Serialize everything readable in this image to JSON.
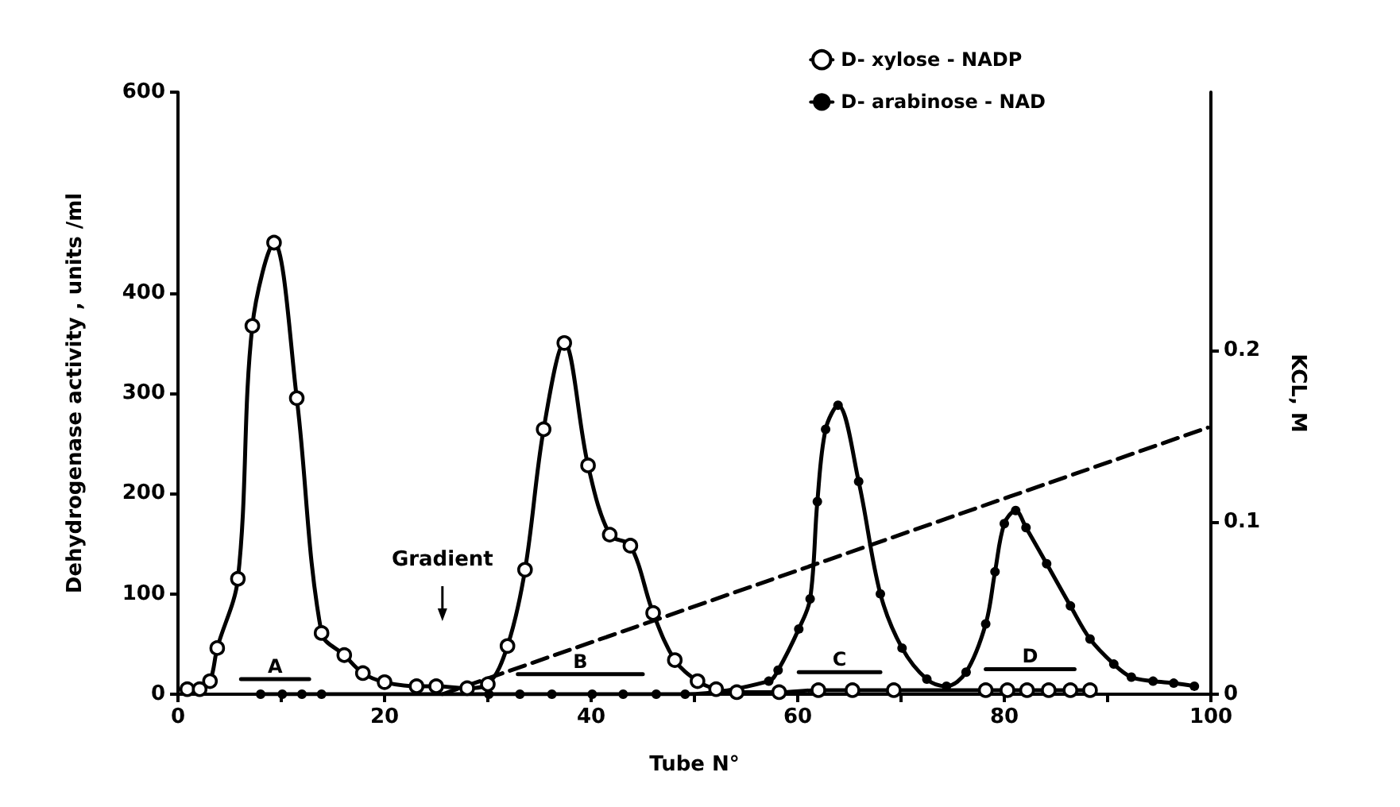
{
  "chart_data": {
    "type": "line",
    "xlabel": "Tube N°",
    "ylabel": "Dehydrogenase activity , units /ml",
    "y2label": "KCL, M",
    "xlim": [
      0,
      100
    ],
    "xticks": [
      0,
      {
        "value": 10,
        "label": null
      },
      20,
      {
        "value": 30,
        "label": null
      },
      40,
      {
        "value": 50,
        "label": null
      },
      60,
      {
        "value": 70,
        "label": null
      },
      80,
      {
        "value": 90,
        "label": null
      },
      100
    ],
    "ylim": [
      0,
      600
    ],
    "yticks": [
      0,
      100,
      200,
      300,
      400,
      600
    ],
    "y2lim": [
      0,
      0.35
    ],
    "y2ticks": [
      0,
      0.1,
      0.2
    ],
    "grid": false,
    "legend": "top right",
    "marker": "circle",
    "series": [
      {
        "name": "D- xylose - NADP",
        "color": "#000000",
        "marker": "circle",
        "x": [
          0.9,
          2.1,
          3.1,
          3.8,
          5.8,
          7.2,
          9.3,
          11.5,
          13.9,
          16.1,
          17.9,
          20,
          23.1,
          25,
          28,
          30,
          31.9,
          33.6,
          35.4,
          37.4,
          39.7,
          41.8,
          43.8,
          46,
          48.1,
          50.3,
          52.1,
          54.1,
          58.2,
          62,
          65.3,
          69.3,
          78.2,
          80.3,
          82.2,
          84.3,
          86.4,
          88.3
        ],
        "values": [
          5,
          5,
          13,
          46,
          115,
          367,
          450,
          295,
          61,
          39,
          21,
          12,
          8,
          8,
          6,
          10,
          48,
          124,
          264,
          350,
          228,
          159,
          148,
          81,
          34,
          13,
          5,
          2,
          2,
          4,
          4,
          4,
          4,
          4,
          4,
          4,
          4,
          4
        ]
      },
      {
        "name": "D- arabinose - NAD",
        "color": "#000000",
        "x": [
          8,
          10.1,
          12,
          13.9,
          30.1,
          33.1,
          36.2,
          40.1,
          43.1,
          46.3,
          49.1,
          57.2,
          58.1,
          60.1,
          61.2,
          61.9,
          62.7,
          63.9,
          65.9,
          68,
          70.1,
          72.5,
          74.4,
          76.3,
          78.2,
          79.1,
          80,
          81.1,
          82.1,
          84.1,
          86.4,
          88.3,
          90.6,
          92.3,
          94.4,
          96.4,
          98.4
        ],
        "values": [
          0,
          0,
          0,
          0,
          0,
          0,
          0,
          0,
          0,
          0,
          0,
          13,
          24,
          65,
          95,
          192,
          264,
          288,
          212,
          100,
          46,
          15,
          8,
          22,
          70,
          122,
          170,
          183,
          166,
          130,
          88,
          55,
          30,
          17,
          13,
          11,
          8
        ]
      },
      {
        "color": "#000000",
        "axis": "y2",
        "marker": "none",
        "line_style": "dashed",
        "x": [
          25.6,
          99.7
        ],
        "values": [
          0,
          0.155
        ]
      },
      {
        "name": "A",
        "color": "#000000",
        "marker": "none",
        "x": [
          6.1,
          12.7
        ],
        "values": [
          15,
          15
        ]
      },
      {
        "name": "B",
        "color": "#000000",
        "marker": "none",
        "x": [
          32.9,
          45
        ],
        "values": [
          20,
          20
        ]
      },
      {
        "name": "C",
        "color": "#000000",
        "marker": "none",
        "x": [
          60.1,
          68
        ],
        "values": [
          22,
          22
        ]
      },
      {
        "name": "D",
        "color": "#000000",
        "marker": "none",
        "x": [
          78.2,
          86.8
        ],
        "values": [
          25,
          25
        ]
      }
    ],
    "annotations": [
      "Gradient"
    ]
  }
}
